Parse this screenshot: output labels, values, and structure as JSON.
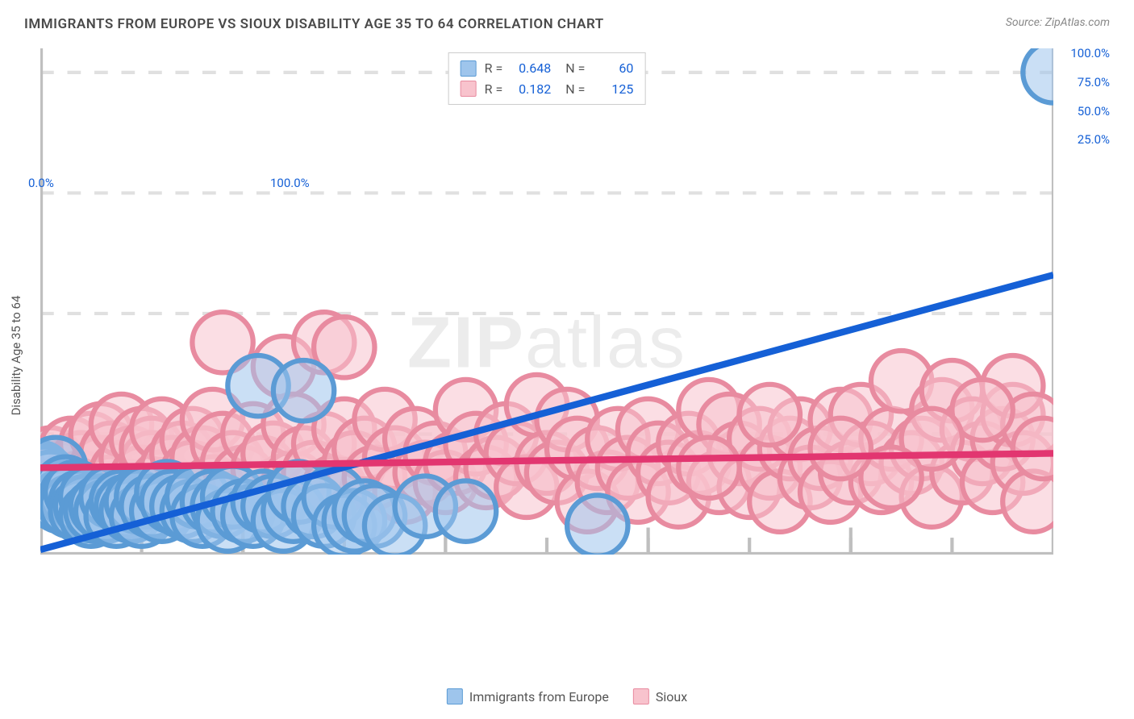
{
  "title": "IMMIGRANTS FROM EUROPE VS SIOUX DISABILITY AGE 35 TO 64 CORRELATION CHART",
  "source": "Source: ZipAtlas.com",
  "ylabel": "Disability Age 35 to 64",
  "watermark_a": "ZIP",
  "watermark_b": "atlas",
  "chart": {
    "type": "scatter",
    "xlim": [
      0,
      100
    ],
    "ylim": [
      0,
      105
    ],
    "x_ticks_major": [
      0,
      20,
      40,
      60,
      80,
      100
    ],
    "x_tick_labels": {
      "0": "0.0%",
      "100": "100.0%"
    },
    "y_grid": [
      25,
      50,
      75,
      100
    ],
    "y_tick_labels": {
      "25": "25.0%",
      "50": "50.0%",
      "75": "75.0%",
      "100": "100.0%"
    },
    "grid_color": "#e0e0e0",
    "axis_color": "#bfbfbf",
    "tick_label_color": "#1560d6",
    "background_color": "#ffffff",
    "marker_radius": 9,
    "marker_stroke_width": 1.5,
    "line_width": 2,
    "series": [
      {
        "name": "Immigrants from Europe",
        "color_fill": "#9ec5ec",
        "color_stroke": "#5b9bd5",
        "line_color": "#1560d6",
        "R": "0.648",
        "N": "60",
        "regression": {
          "x1": 0,
          "y1": 1,
          "x2": 100,
          "y2": 58
        },
        "points": [
          [
            0,
            17
          ],
          [
            0.5,
            16
          ],
          [
            1,
            15
          ],
          [
            1,
            12
          ],
          [
            1.5,
            18
          ],
          [
            2,
            13
          ],
          [
            2,
            11
          ],
          [
            2.5,
            14
          ],
          [
            3,
            12
          ],
          [
            3,
            10
          ],
          [
            3.5,
            13
          ],
          [
            4,
            11
          ],
          [
            4,
            9
          ],
          [
            4.5,
            10
          ],
          [
            5,
            12
          ],
          [
            5,
            8
          ],
          [
            5.5,
            9
          ],
          [
            6,
            10
          ],
          [
            6.5,
            9
          ],
          [
            7,
            12
          ],
          [
            7.5,
            8
          ],
          [
            8,
            11
          ],
          [
            8.5,
            10
          ],
          [
            9,
            9
          ],
          [
            9.5,
            11
          ],
          [
            10,
            8
          ],
          [
            10.5,
            12
          ],
          [
            11,
            10
          ],
          [
            12,
            9
          ],
          [
            12.5,
            13
          ],
          [
            13,
            11
          ],
          [
            14,
            10
          ],
          [
            15,
            9
          ],
          [
            15.5,
            12
          ],
          [
            16,
            8
          ],
          [
            17,
            11
          ],
          [
            18,
            10
          ],
          [
            18.5,
            7
          ],
          [
            19,
            12
          ],
          [
            20,
            9
          ],
          [
            21,
            8
          ],
          [
            21.5,
            35
          ],
          [
            22,
            11
          ],
          [
            23,
            10
          ],
          [
            24,
            7
          ],
          [
            25,
            9
          ],
          [
            25.5,
            13
          ],
          [
            26,
            34
          ],
          [
            27,
            10
          ],
          [
            28,
            8
          ],
          [
            29,
            12
          ],
          [
            30,
            6
          ],
          [
            31,
            7
          ],
          [
            32,
            9
          ],
          [
            33,
            8
          ],
          [
            35,
            6
          ],
          [
            38,
            10
          ],
          [
            42,
            9
          ],
          [
            55,
            6
          ],
          [
            100,
            100
          ]
        ]
      },
      {
        "name": "Sioux",
        "color_fill": "#f8c3cd",
        "color_stroke": "#e88ba0",
        "line_color": "#e23670",
        "R": "0.182",
        "N": "125",
        "regression": {
          "x1": 0,
          "y1": 18,
          "x2": 100,
          "y2": 21
        },
        "points": [
          [
            1,
            20
          ],
          [
            2,
            17
          ],
          [
            2,
            14
          ],
          [
            3,
            22
          ],
          [
            3,
            12
          ],
          [
            4,
            19
          ],
          [
            4,
            15
          ],
          [
            5,
            23
          ],
          [
            5,
            11
          ],
          [
            6,
            18
          ],
          [
            6,
            25
          ],
          [
            7,
            21
          ],
          [
            7,
            14
          ],
          [
            8,
            17
          ],
          [
            8,
            27
          ],
          [
            9,
            20
          ],
          [
            9,
            13
          ],
          [
            10,
            24
          ],
          [
            10,
            16
          ],
          [
            11,
            19
          ],
          [
            11,
            22
          ],
          [
            12,
            15
          ],
          [
            12,
            26
          ],
          [
            13,
            18
          ],
          [
            14,
            21
          ],
          [
            14,
            12
          ],
          [
            15,
            24
          ],
          [
            15,
            17
          ],
          [
            16,
            20
          ],
          [
            17,
            28
          ],
          [
            17,
            14
          ],
          [
            18,
            23
          ],
          [
            18,
            44
          ],
          [
            19,
            19
          ],
          [
            20,
            16
          ],
          [
            21,
            25
          ],
          [
            22,
            18
          ],
          [
            23,
            21
          ],
          [
            24,
            39
          ],
          [
            25,
            15
          ],
          [
            25,
            27
          ],
          [
            26,
            20
          ],
          [
            27,
            17
          ],
          [
            28,
            23
          ],
          [
            28,
            44
          ],
          [
            29,
            14
          ],
          [
            30,
            26
          ],
          [
            30,
            43
          ],
          [
            31,
            19
          ],
          [
            32,
            22
          ],
          [
            33,
            16
          ],
          [
            34,
            28
          ],
          [
            35,
            20
          ],
          [
            36,
            13
          ],
          [
            37,
            24
          ],
          [
            38,
            17
          ],
          [
            39,
            21
          ],
          [
            40,
            15
          ],
          [
            41,
            19
          ],
          [
            42,
            30
          ],
          [
            43,
            23
          ],
          [
            44,
            16
          ],
          [
            45,
            18
          ],
          [
            46,
            25
          ],
          [
            47,
            21
          ],
          [
            48,
            14
          ],
          [
            49,
            31
          ],
          [
            50,
            19
          ],
          [
            51,
            17
          ],
          [
            52,
            28
          ],
          [
            53,
            22
          ],
          [
            54,
            11
          ],
          [
            55,
            20
          ],
          [
            56,
            15
          ],
          [
            57,
            24
          ],
          [
            58,
            18
          ],
          [
            59,
            13
          ],
          [
            60,
            26
          ],
          [
            61,
            21
          ],
          [
            62,
            17
          ],
          [
            63,
            12
          ],
          [
            64,
            23
          ],
          [
            65,
            19
          ],
          [
            66,
            30
          ],
          [
            67,
            15
          ],
          [
            68,
            27
          ],
          [
            69,
            21
          ],
          [
            70,
            14
          ],
          [
            71,
            24
          ],
          [
            72,
            18
          ],
          [
            73,
            11
          ],
          [
            74,
            22
          ],
          [
            75,
            26
          ],
          [
            76,
            16
          ],
          [
            77,
            20
          ],
          [
            78,
            13
          ],
          [
            79,
            28
          ],
          [
            80,
            17
          ],
          [
            81,
            29
          ],
          [
            82,
            21
          ],
          [
            83,
            15
          ],
          [
            84,
            24
          ],
          [
            85,
            36
          ],
          [
            86,
            19
          ],
          [
            87,
            22
          ],
          [
            88,
            12
          ],
          [
            89,
            30
          ],
          [
            90,
            34
          ],
          [
            91,
            17
          ],
          [
            92,
            26
          ],
          [
            93,
            21
          ],
          [
            94,
            15
          ],
          [
            95,
            24
          ],
          [
            96,
            29
          ],
          [
            96,
            35
          ],
          [
            97,
            19
          ],
          [
            98,
            27
          ],
          [
            98,
            11
          ],
          [
            99,
            22
          ],
          [
            93,
            30
          ],
          [
            88,
            24
          ],
          [
            84,
            16
          ],
          [
            79,
            22
          ],
          [
            72,
            29
          ],
          [
            66,
            18
          ]
        ]
      }
    ]
  },
  "legend_bottom": [
    {
      "label": "Immigrants from Europe",
      "fill": "#9ec5ec",
      "stroke": "#5b9bd5"
    },
    {
      "label": "Sioux",
      "fill": "#f8c3cd",
      "stroke": "#e88ba0"
    }
  ]
}
